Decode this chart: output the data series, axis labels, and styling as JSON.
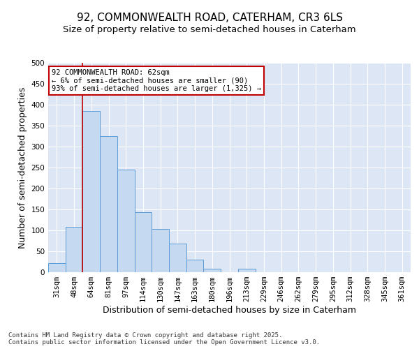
{
  "title1": "92, COMMONWEALTH ROAD, CATERHAM, CR3 6LS",
  "title2": "Size of property relative to semi-detached houses in Caterham",
  "xlabel": "Distribution of semi-detached houses by size in Caterham",
  "ylabel": "Number of semi-detached properties",
  "categories": [
    "31sqm",
    "48sqm",
    "64sqm",
    "81sqm",
    "97sqm",
    "114sqm",
    "130sqm",
    "147sqm",
    "163sqm",
    "180sqm",
    "196sqm",
    "213sqm",
    "229sqm",
    "246sqm",
    "262sqm",
    "279sqm",
    "295sqm",
    "312sqm",
    "328sqm",
    "345sqm",
    "361sqm"
  ],
  "values": [
    22,
    108,
    385,
    325,
    245,
    143,
    103,
    68,
    30,
    8,
    0,
    8,
    0,
    0,
    0,
    0,
    0,
    0,
    0,
    0,
    0
  ],
  "bar_color": "#c5d9f1",
  "bar_edge_color": "#5b9bd5",
  "vline_color": "#c00000",
  "vline_pos": 2,
  "annotation_text": "92 COMMONWEALTH ROAD: 62sqm\n← 6% of semi-detached houses are smaller (90)\n93% of semi-detached houses are larger (1,325) →",
  "annotation_box_color": "#ffffff",
  "annotation_box_edge": "#c00000",
  "ylim": [
    0,
    500
  ],
  "yticks": [
    0,
    50,
    100,
    150,
    200,
    250,
    300,
    350,
    400,
    450,
    500
  ],
  "footer": "Contains HM Land Registry data © Crown copyright and database right 2025.\nContains public sector information licensed under the Open Government Licence v3.0.",
  "fig_bg_color": "#ffffff",
  "plot_bg_color": "#dce6f5",
  "title_fontsize": 11,
  "subtitle_fontsize": 9.5,
  "tick_fontsize": 7.5,
  "label_fontsize": 9,
  "footer_fontsize": 6.5
}
